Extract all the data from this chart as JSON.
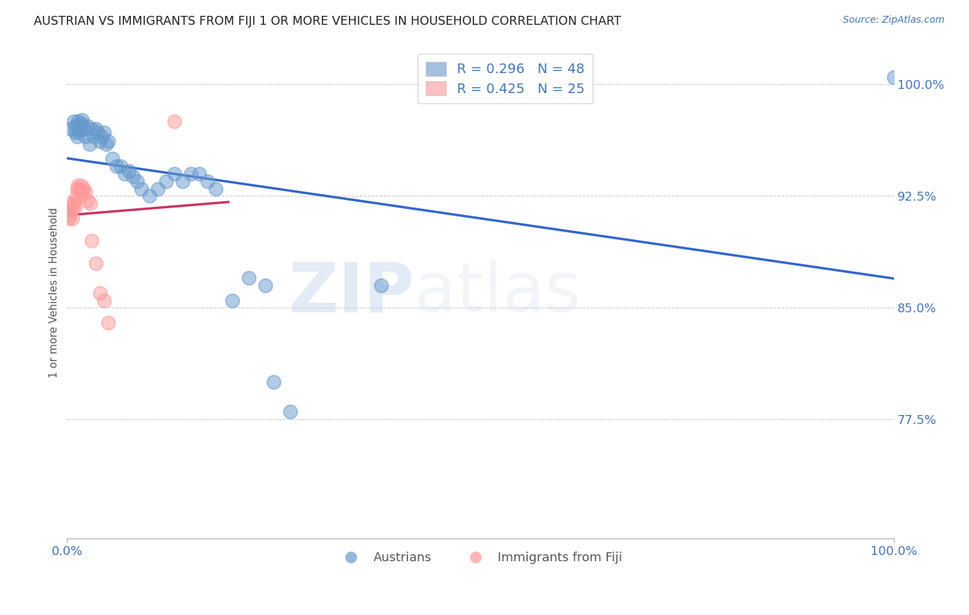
{
  "title": "AUSTRIAN VS IMMIGRANTS FROM FIJI 1 OR MORE VEHICLES IN HOUSEHOLD CORRELATION CHART",
  "source_text": "Source: ZipAtlas.com",
  "ylabel": "1 or more Vehicles in Household",
  "xlim": [
    0.0,
    1.0
  ],
  "ylim": [
    0.695,
    1.025
  ],
  "yticks": [
    0.775,
    0.85,
    0.925,
    1.0
  ],
  "ytick_labels": [
    "77.5%",
    "85.0%",
    "92.5%",
    "100.0%"
  ],
  "xticks": [
    0.0,
    1.0
  ],
  "xtick_labels": [
    "0.0%",
    "100.0%"
  ],
  "blue_R": 0.296,
  "blue_N": 48,
  "pink_R": 0.425,
  "pink_N": 25,
  "blue_color": "#6699CC",
  "pink_color": "#FF9999",
  "blue_line_color": "#3366CC",
  "pink_line_color": "#CC3366",
  "legend_label_blue": "Austrians",
  "legend_label_pink": "Immigrants from Fiji",
  "watermark_zip": "ZIP",
  "watermark_atlas": "atlas",
  "background_color": "#ffffff",
  "grid_color": "#cccccc",
  "title_color": "#222222",
  "axis_label_color": "#555555",
  "tick_label_color": "#4477BB",
  "blue_x": [
    0.005,
    0.008,
    0.01,
    0.01,
    0.012,
    0.013,
    0.014,
    0.015,
    0.016,
    0.017,
    0.018,
    0.02,
    0.022,
    0.025,
    0.027,
    0.03,
    0.032,
    0.035,
    0.037,
    0.04,
    0.042,
    0.045,
    0.047,
    0.05,
    0.055,
    0.06,
    0.065,
    0.07,
    0.075,
    0.08,
    0.085,
    0.09,
    0.1,
    0.11,
    0.12,
    0.13,
    0.14,
    0.15,
    0.16,
    0.17,
    0.18,
    0.2,
    0.22,
    0.24,
    0.25,
    0.27,
    0.38,
    1.0
  ],
  "blue_y": [
    0.97,
    0.975,
    0.972,
    0.968,
    0.965,
    0.975,
    0.97,
    0.968,
    0.972,
    0.974,
    0.976,
    0.97,
    0.965,
    0.972,
    0.96,
    0.97,
    0.965,
    0.97,
    0.968,
    0.962,
    0.965,
    0.968,
    0.96,
    0.962,
    0.95,
    0.945,
    0.945,
    0.94,
    0.942,
    0.938,
    0.935,
    0.93,
    0.925,
    0.93,
    0.935,
    0.94,
    0.935,
    0.94,
    0.94,
    0.935,
    0.93,
    0.855,
    0.87,
    0.865,
    0.8,
    0.78,
    0.865,
    1.005
  ],
  "pink_x": [
    0.002,
    0.003,
    0.004,
    0.005,
    0.006,
    0.007,
    0.008,
    0.01,
    0.011,
    0.012,
    0.013,
    0.015,
    0.016,
    0.017,
    0.018,
    0.02,
    0.022,
    0.025,
    0.028,
    0.03,
    0.035,
    0.04,
    0.045,
    0.05,
    0.13
  ],
  "pink_y": [
    0.91,
    0.912,
    0.92,
    0.915,
    0.91,
    0.918,
    0.92,
    0.918,
    0.925,
    0.93,
    0.932,
    0.93,
    0.925,
    0.932,
    0.928,
    0.93,
    0.928,
    0.922,
    0.92,
    0.895,
    0.88,
    0.86,
    0.855,
    0.84,
    0.975
  ]
}
